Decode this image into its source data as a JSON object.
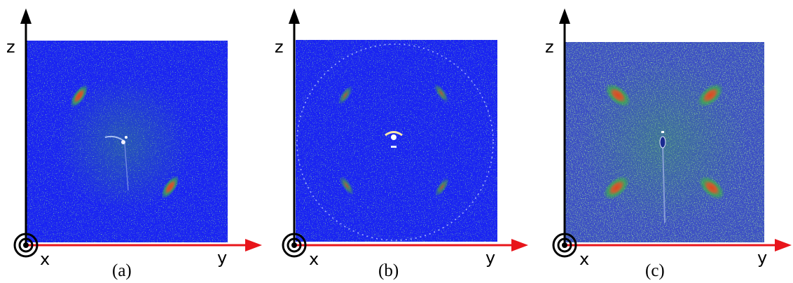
{
  "panels": [
    {
      "id": "a",
      "caption": "(a)",
      "z_label": "z",
      "x_label": "x",
      "y_label": "y"
    },
    {
      "id": "b",
      "caption": "(b)",
      "z_label": "z",
      "x_label": "x",
      "y_label": "y"
    },
    {
      "id": "c",
      "caption": "(c)",
      "z_label": "z",
      "x_label": "x",
      "y_label": "y"
    }
  ],
  "colors": {
    "pattern_background": "#1a24f2",
    "pattern_background_c": "#3c4fc4",
    "peak_core": "#d94a2a",
    "peak_halo": "#3fb04a",
    "z_axis": "#000000",
    "y_axis": "#e8151b",
    "x_axis_symbol": "#000000"
  }
}
